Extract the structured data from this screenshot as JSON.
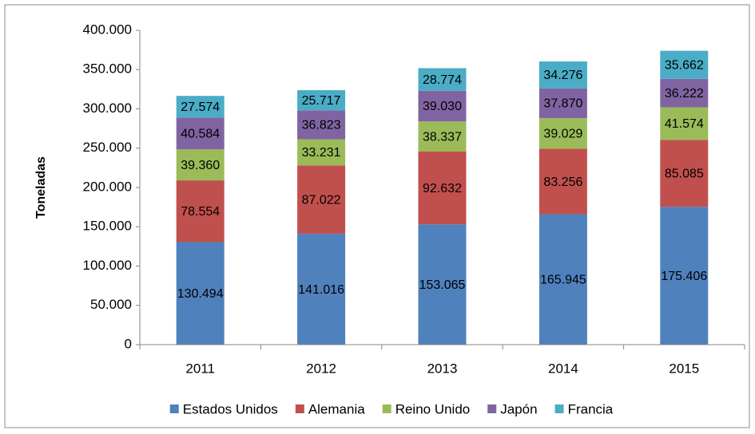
{
  "chart_data": {
    "type": "stacked_bar",
    "y_label": "Toneladas",
    "categories": [
      "2011",
      "2012",
      "2013",
      "2014",
      "2015"
    ],
    "series": [
      {
        "name": "Estados Unidos",
        "color": "#4f81bd",
        "values": [
          130494,
          141016,
          153065,
          165945,
          175406
        ],
        "value_labels": [
          "130.494",
          "141.016",
          "153.065",
          "165.945",
          "175.406"
        ]
      },
      {
        "name": "Alemania",
        "color": "#c0504d",
        "values": [
          78554,
          87022,
          92632,
          83256,
          85085
        ],
        "value_labels": [
          "78.554",
          "87.022",
          "92.632",
          "83.256",
          "85.085"
        ]
      },
      {
        "name": "Reino Unido",
        "color": "#9bbb59",
        "values": [
          39360,
          33231,
          38337,
          39029,
          41574
        ],
        "value_labels": [
          "39.360",
          "33.231",
          "38.337",
          "39.029",
          "41.574"
        ]
      },
      {
        "name": "Japón",
        "color": "#8064a2",
        "values": [
          40584,
          36823,
          39030,
          37870,
          36222
        ],
        "value_labels": [
          "40.584",
          "36.823",
          "39.030",
          "37.870",
          "36.222"
        ]
      },
      {
        "name": "Francia",
        "color": "#4bacc6",
        "values": [
          27574,
          25717,
          28774,
          34276,
          35662
        ],
        "value_labels": [
          "27.574",
          "25.717",
          "28.774",
          "34.276",
          "35.662"
        ]
      }
    ],
    "ylim": [
      0,
      400000
    ],
    "yticks": [
      0,
      {
        "value": 50000,
        "label": "50.000"
      },
      {
        "value": 100000,
        "label": "100.000"
      },
      {
        "value": 150000,
        "label": "150.000"
      },
      {
        "value": 200000,
        "label": "200.000"
      },
      {
        "value": 250000,
        "label": "250.000"
      },
      {
        "value": 300000,
        "label": "300.000"
      },
      {
        "value": 350000,
        "label": "350.000"
      },
      {
        "value": 400000,
        "label": "400.000"
      }
    ],
    "grid": false,
    "legend": "bottom"
  }
}
